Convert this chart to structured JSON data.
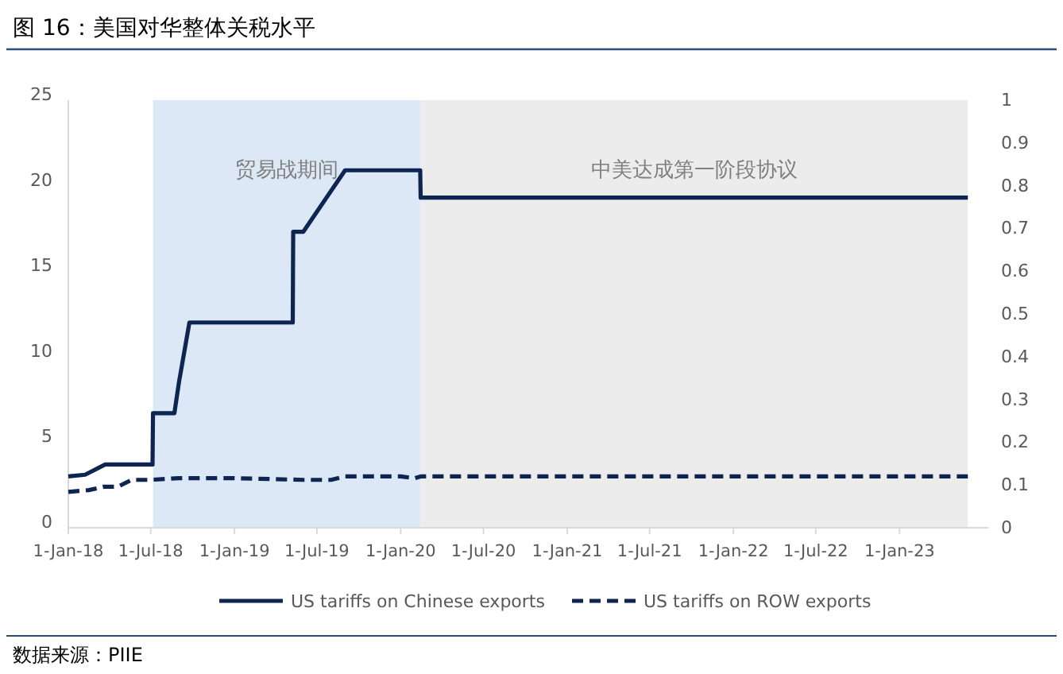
{
  "chart_data": {
    "type": "line",
    "title": "图 16：美国对华整体关税水平",
    "xlim": [
      "2018-01-01",
      "2023-07-15"
    ],
    "xticks": [
      {
        "value": "2018-01-01",
        "label": "1-Jan-18"
      },
      {
        "value": "2018-07-01",
        "label": "1-Jul-18"
      },
      {
        "value": "2019-01-01",
        "label": "1-Jan-19"
      },
      {
        "value": "2019-07-01",
        "label": "1-Jul-19"
      },
      {
        "value": "2020-01-01",
        "label": "1-Jan-20"
      },
      {
        "value": "2020-07-01",
        "label": "1-Jul-20"
      },
      {
        "value": "2021-01-01",
        "label": "1-Jan-21"
      },
      {
        "value": "2021-07-01",
        "label": "1-Jul-21"
      },
      {
        "value": "2022-01-01",
        "label": "1-Jan-22"
      },
      {
        "value": "2022-07-01",
        "label": "1-Jul-22"
      },
      {
        "value": "2023-01-01",
        "label": "1-Jan-23"
      }
    ],
    "ylim": [
      0,
      25
    ],
    "yticks": [
      0,
      5,
      10,
      15,
      20,
      25
    ],
    "y2lim": [
      0,
      1
    ],
    "y2ticks": [
      0,
      0.1,
      0.2,
      0.3,
      0.4,
      0.5,
      0.6,
      0.7,
      0.8,
      0.9,
      1
    ],
    "series": [
      {
        "name": "US tariffs on Chinese exports",
        "color": "#0d2550",
        "line_style": "solid",
        "x": [
          "2018-01-01",
          "2018-02-07",
          "2018-03-23",
          "2018-07-05",
          "2018-07-06",
          "2018-08-22",
          "2018-09-01",
          "2018-09-24",
          "2019-05-09",
          "2019-05-10",
          "2019-06-01",
          "2019-09-01",
          "2020-02-13",
          "2020-02-14",
          "2023-05-31"
        ],
        "values": [
          3.0,
          3.1,
          3.7,
          3.7,
          6.7,
          6.7,
          8.5,
          12.0,
          12.0,
          17.3,
          17.3,
          20.9,
          20.9,
          19.3,
          19.3
        ]
      },
      {
        "name": "US tariffs on ROW exports",
        "color": "#0d2550",
        "line_style": "dashed",
        "x": [
          "2018-01-01",
          "2018-02-15",
          "2018-03-20",
          "2018-04-20",
          "2018-05-20",
          "2018-07-01",
          "2018-09-01",
          "2019-01-01",
          "2019-06-01",
          "2019-08-01",
          "2019-09-01",
          "2020-01-01",
          "2020-02-01",
          "2020-02-14",
          "2023-05-31"
        ],
        "values": [
          2.1,
          2.2,
          2.4,
          2.4,
          2.8,
          2.8,
          2.9,
          2.9,
          2.8,
          2.8,
          3.0,
          3.0,
          2.9,
          3.0,
          3.0
        ]
      }
    ],
    "bands": [
      {
        "axis": "x",
        "from": "2018-07-06",
        "to": "2020-02-14",
        "label": "贸易战期间",
        "color": "#dce8f6"
      },
      {
        "axis": "x",
        "from": "2020-02-14",
        "to": "2023-05-31",
        "label": "中美达成第一阶段协议",
        "color": "#ececec"
      }
    ],
    "legend": "bottom",
    "grid": false,
    "marker": "none",
    "annotations": [
      "数据来源：PIIE"
    ]
  }
}
